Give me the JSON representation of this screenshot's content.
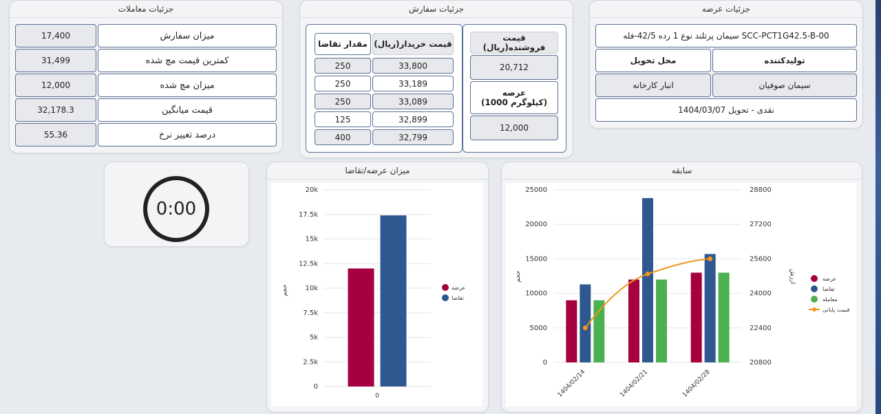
{
  "offer": {
    "title": "جزئیات عرضه",
    "product": "سیمان پرتلند نوع 1 رده 42/5-فله SCC-PCT1G42.5-B-00",
    "producer_label": "تولیدکننده",
    "delivery_place_label": "محل تحویل",
    "producer": "سیمان صوفیان",
    "delivery_place": "انبار کارخانه",
    "settlement": "نقدی - تحویل 1404/03/07"
  },
  "order": {
    "title": "جزئیات سفارش",
    "seller_price_label": "قیمت فروشنده(ریال)",
    "seller_price": "20,712",
    "supply_label": "عرضه\n(1000 کیلوگرم)",
    "supply": "12,000",
    "buy_price_label": "قیمت خریدار(ریال)",
    "demand_qty_label": "مقدار تقاضا",
    "rows": [
      {
        "price": "33,800",
        "qty": "250"
      },
      {
        "price": "33,189",
        "qty": "250"
      },
      {
        "price": "33,089",
        "qty": "250"
      },
      {
        "price": "32,899",
        "qty": "125"
      },
      {
        "price": "32,799",
        "qty": "400"
      }
    ]
  },
  "trades": {
    "title": "جزئیات معاملات",
    "rows": [
      {
        "label": "میزان سفارش",
        "value": "17,400"
      },
      {
        "label": "کمترین قیمت مچ شده",
        "value": "31,499"
      },
      {
        "label": "میزان مچ شده",
        "value": "12,000"
      },
      {
        "label": "قیمت میانگین",
        "value": "32,178.3"
      },
      {
        "label": "درصد تغییر نرخ",
        "value": "55.36"
      }
    ]
  },
  "timer": {
    "value": "0:00"
  },
  "colors": {
    "offer": "#a50040",
    "demand": "#2f5890",
    "trade": "#4caf50",
    "final_price": "#f0961e"
  },
  "chart_data": [
    {
      "type": "bar",
      "title": "میزان عرضه/تقاضا",
      "categories": [
        "0"
      ],
      "series": [
        {
          "name": "عرضه",
          "values": [
            12000
          ]
        },
        {
          "name": "تقاضا",
          "values": [
            17400
          ]
        }
      ],
      "ylabel": "حجم",
      "ylim": [
        0,
        20000
      ],
      "yticks": [
        "0",
        "2.5k",
        "5k",
        "7.5k",
        "10k",
        "12.5k",
        "15k",
        "17.5k",
        "20k"
      ],
      "legend": "right"
    },
    {
      "type": "bar",
      "title": "سابقه",
      "categories": [
        "1404/02/14",
        "1404/02/21",
        "1404/02/28"
      ],
      "series": [
        {
          "name": "عرضه",
          "values": [
            9000,
            12000,
            13000
          ]
        },
        {
          "name": "تقاضا",
          "values": [
            11300,
            23800,
            15700
          ]
        },
        {
          "name": "معامله",
          "values": [
            9000,
            12000,
            13000
          ]
        },
        {
          "name": "قیمت پایانی",
          "type": "line",
          "axis": "right",
          "values": [
            22400,
            24900,
            25600
          ]
        }
      ],
      "ylabel": "حجم",
      "ylabel_right": "ارزش",
      "ylim": [
        0,
        25000
      ],
      "ylim_right": [
        20800,
        28800
      ],
      "yticks": [
        "0",
        "5000",
        "10000",
        "15000",
        "20000",
        "25000"
      ],
      "yticks_right": [
        "20800",
        "22400",
        "24000",
        "25600",
        "27200",
        "28800"
      ],
      "legend": "right"
    }
  ]
}
